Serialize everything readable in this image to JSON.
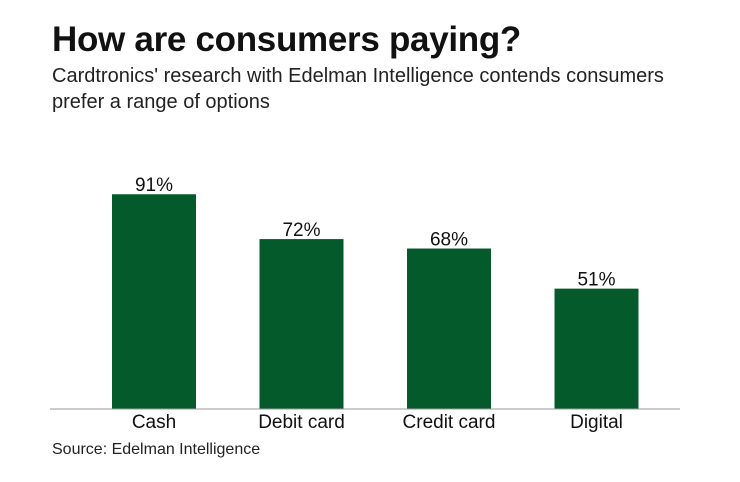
{
  "chart_data": {
    "type": "bar",
    "title": "How are consumers paying?",
    "subtitle": "Cardtronics' research with Edelman Intelligence contends consumers prefer a range of options",
    "categories": [
      "Cash",
      "Debit card",
      "Credit card",
      "Digital"
    ],
    "values": [
      91,
      72,
      68,
      51
    ],
    "value_labels": [
      "91%",
      "72%",
      "68%",
      "51%"
    ],
    "xlabel": "",
    "ylabel": "",
    "ylim": [
      0,
      100
    ],
    "grid": false,
    "legend": "none",
    "bar_color": "#045a2a",
    "source": "Source: Edelman Intelligence"
  }
}
